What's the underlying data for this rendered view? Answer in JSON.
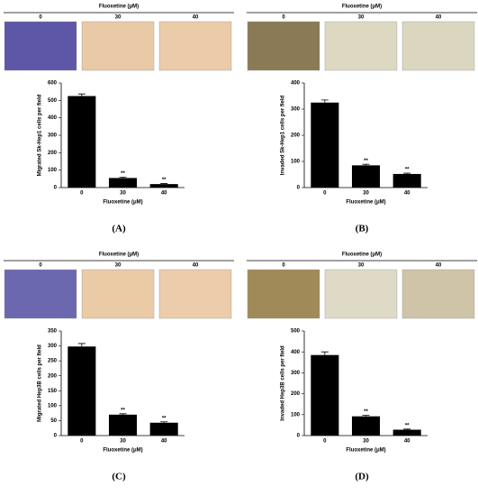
{
  "chart_data": [
    {
      "type": "bar",
      "panel_label": "(A)",
      "image_header": "Fluoxetine (μM)",
      "image_labels": [
        "0",
        "30",
        "40"
      ],
      "ylabel": "Migrated Sk-Hep1 cells per field",
      "xlabel": "Fluoxetine (μM)",
      "categories": [
        "0",
        "30",
        "40"
      ],
      "values": [
        525,
        55,
        20
      ],
      "errors": [
        12,
        5,
        3
      ],
      "annotations": [
        null,
        "**",
        "**"
      ],
      "color": "#000000",
      "ylim": [
        0,
        600
      ],
      "yticks": [
        0,
        100,
        200,
        300,
        400,
        500,
        600
      ]
    },
    {
      "type": "bar",
      "panel_label": "(B)",
      "image_header": "Fluoxetine (μM)",
      "image_labels": [
        "0",
        "30",
        "40"
      ],
      "ylabel": "Invaded Sk-Hep1 cells per field",
      "xlabel": "Fluoxetine (μM)",
      "categories": [
        "0",
        "30",
        "40"
      ],
      "values": [
        325,
        85,
        52
      ],
      "errors": [
        10,
        4,
        3
      ],
      "annotations": [
        null,
        "**",
        "**"
      ],
      "color": "#000000",
      "ylim": [
        0,
        400
      ],
      "yticks": [
        0,
        100,
        200,
        300,
        400
      ]
    },
    {
      "type": "bar",
      "panel_label": "(C)",
      "image_header": "Fluoxetine (μM)",
      "image_labels": [
        "0",
        "30",
        "40"
      ],
      "ylabel": "Migrated Hep3B cells per field",
      "xlabel": "Fluoxetine (μM)",
      "categories": [
        "0",
        "30",
        "40"
      ],
      "values": [
        298,
        70,
        43
      ],
      "errors": [
        10,
        3,
        3
      ],
      "annotations": [
        null,
        "**",
        "**"
      ],
      "color": "#000000",
      "ylim": [
        0,
        350
      ],
      "yticks": [
        0,
        50,
        100,
        150,
        200,
        250,
        300,
        350
      ]
    },
    {
      "type": "bar",
      "panel_label": "(D)",
      "image_header": "Fluoxetine (μM)",
      "image_labels": [
        "0",
        "30",
        "40"
      ],
      "ylabel": "Invaded Hep3B cells per field",
      "xlabel": "Fluoxetine (μM)",
      "categories": [
        "0",
        "30",
        "40"
      ],
      "values": [
        385,
        92,
        28
      ],
      "errors": [
        15,
        5,
        3
      ],
      "annotations": [
        null,
        "**",
        "**"
      ],
      "color": "#000000",
      "ylim": [
        0,
        500
      ],
      "yticks": [
        0,
        100,
        200,
        300,
        400,
        500
      ]
    }
  ]
}
